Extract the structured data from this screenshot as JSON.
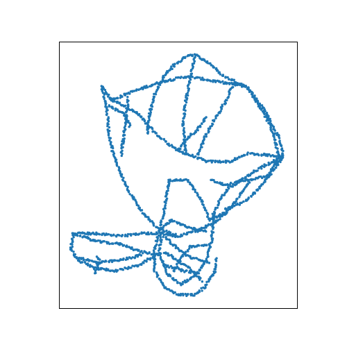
{
  "chart_data": {
    "type": "scatter",
    "title": "",
    "xlabel": "",
    "ylabel": "",
    "xlim": [
      0,
      1
    ],
    "ylim": [
      0,
      1
    ],
    "grid": false,
    "legend": "none",
    "color": "#1f77b4",
    "axes_ticks": "hidden",
    "outline_paths": [
      [
        [
          0.18,
          0.83
        ],
        [
          0.22,
          0.78
        ],
        [
          0.25,
          0.77
        ],
        [
          0.33,
          0.73
        ],
        [
          0.41,
          0.65
        ],
        [
          0.5,
          0.59
        ],
        [
          0.62,
          0.55
        ],
        [
          0.72,
          0.55
        ],
        [
          0.79,
          0.58
        ],
        [
          0.94,
          0.57
        ]
      ],
      [
        [
          0.22,
          0.78
        ],
        [
          0.3,
          0.81
        ],
        [
          0.43,
          0.85
        ],
        [
          0.54,
          0.87
        ],
        [
          0.66,
          0.85
        ],
        [
          0.73,
          0.84
        ],
        [
          0.79,
          0.83
        ]
      ],
      [
        [
          0.48,
          0.91
        ],
        [
          0.54,
          0.95
        ],
        [
          0.57,
          0.95
        ],
        [
          0.63,
          0.92
        ],
        [
          0.69,
          0.87
        ],
        [
          0.79,
          0.83
        ],
        [
          0.87,
          0.73
        ],
        [
          0.92,
          0.64
        ],
        [
          0.94,
          0.57
        ]
      ],
      [
        [
          0.48,
          0.91
        ],
        [
          0.44,
          0.87
        ],
        [
          0.4,
          0.8
        ],
        [
          0.38,
          0.73
        ],
        [
          0.37,
          0.65
        ]
      ],
      [
        [
          0.57,
          0.95
        ],
        [
          0.55,
          0.87
        ],
        [
          0.53,
          0.77
        ],
        [
          0.52,
          0.69
        ],
        [
          0.53,
          0.58
        ]
      ],
      [
        [
          0.79,
          0.83
        ],
        [
          0.86,
          0.73
        ],
        [
          0.9,
          0.65
        ],
        [
          0.92,
          0.57
        ],
        [
          0.88,
          0.5
        ],
        [
          0.8,
          0.48
        ],
        [
          0.74,
          0.4
        ],
        [
          0.7,
          0.36
        ],
        [
          0.63,
          0.33
        ]
      ],
      [
        [
          0.94,
          0.57
        ],
        [
          0.85,
          0.53
        ],
        [
          0.78,
          0.49
        ],
        [
          0.71,
          0.45
        ],
        [
          0.67,
          0.4
        ],
        [
          0.64,
          0.34
        ]
      ],
      [
        [
          0.94,
          0.57
        ],
        [
          0.9,
          0.52
        ],
        [
          0.84,
          0.45
        ],
        [
          0.78,
          0.4
        ],
        [
          0.69,
          0.37
        ]
      ],
      [
        [
          0.18,
          0.83
        ],
        [
          0.2,
          0.75
        ],
        [
          0.21,
          0.65
        ],
        [
          0.23,
          0.57
        ],
        [
          0.29,
          0.44
        ],
        [
          0.35,
          0.36
        ],
        [
          0.41,
          0.3
        ],
        [
          0.5,
          0.27
        ],
        [
          0.58,
          0.29
        ],
        [
          0.65,
          0.32
        ],
        [
          0.7,
          0.36
        ]
      ],
      [
        [
          0.29,
          0.79
        ],
        [
          0.28,
          0.7
        ],
        [
          0.27,
          0.64
        ],
        [
          0.26,
          0.57
        ]
      ],
      [
        [
          0.63,
          0.33
        ],
        [
          0.6,
          0.4
        ],
        [
          0.54,
          0.48
        ],
        [
          0.46,
          0.48
        ],
        [
          0.44,
          0.36
        ],
        [
          0.4,
          0.22
        ],
        [
          0.4,
          0.14
        ],
        [
          0.44,
          0.08
        ],
        [
          0.5,
          0.05
        ],
        [
          0.57,
          0.05
        ],
        [
          0.61,
          0.08
        ],
        [
          0.65,
          0.13
        ],
        [
          0.66,
          0.19
        ]
      ],
      [
        [
          0.65,
          0.35
        ],
        [
          0.64,
          0.26
        ],
        [
          0.62,
          0.18
        ],
        [
          0.57,
          0.12
        ],
        [
          0.51,
          0.09
        ],
        [
          0.45,
          0.13
        ],
        [
          0.42,
          0.21
        ],
        [
          0.43,
          0.28
        ],
        [
          0.5,
          0.27
        ]
      ],
      [
        [
          0.41,
          0.28
        ],
        [
          0.34,
          0.28
        ],
        [
          0.26,
          0.27
        ],
        [
          0.16,
          0.28
        ],
        [
          0.06,
          0.28
        ],
        [
          0.05,
          0.22
        ],
        [
          0.08,
          0.18
        ],
        [
          0.15,
          0.15
        ],
        [
          0.24,
          0.14
        ],
        [
          0.33,
          0.16
        ],
        [
          0.41,
          0.2
        ]
      ],
      [
        [
          0.06,
          0.28
        ],
        [
          0.16,
          0.25
        ],
        [
          0.26,
          0.24
        ],
        [
          0.35,
          0.21
        ],
        [
          0.42,
          0.2
        ]
      ],
      [
        [
          0.08,
          0.19
        ],
        [
          0.16,
          0.17
        ],
        [
          0.26,
          0.18
        ],
        [
          0.35,
          0.2
        ]
      ],
      [
        [
          0.15,
          0.13
        ],
        [
          0.17,
          0.17
        ],
        [
          0.16,
          0.2
        ]
      ],
      [
        [
          0.43,
          0.3
        ],
        [
          0.47,
          0.33
        ],
        [
          0.55,
          0.3
        ],
        [
          0.62,
          0.29
        ]
      ],
      [
        [
          0.44,
          0.21
        ],
        [
          0.48,
          0.19
        ],
        [
          0.53,
          0.16
        ],
        [
          0.57,
          0.13
        ],
        [
          0.6,
          0.1
        ]
      ],
      [
        [
          0.44,
          0.27
        ],
        [
          0.5,
          0.22
        ],
        [
          0.55,
          0.19
        ],
        [
          0.63,
          0.17
        ]
      ],
      [
        [
          0.45,
          0.16
        ],
        [
          0.52,
          0.14
        ],
        [
          0.59,
          0.13
        ]
      ],
      [
        [
          0.48,
          0.14
        ],
        [
          0.52,
          0.2
        ],
        [
          0.55,
          0.23
        ],
        [
          0.63,
          0.24
        ]
      ],
      [
        [
          0.73,
          0.84
        ],
        [
          0.7,
          0.78
        ],
        [
          0.66,
          0.72
        ],
        [
          0.61,
          0.64
        ],
        [
          0.58,
          0.57
        ]
      ],
      [
        [
          0.5,
          0.59
        ],
        [
          0.54,
          0.64
        ],
        [
          0.58,
          0.67
        ],
        [
          0.62,
          0.72
        ]
      ],
      [
        [
          0.64,
          0.48
        ],
        [
          0.7,
          0.46
        ],
        [
          0.77,
          0.48
        ],
        [
          0.8,
          0.48
        ]
      ],
      [
        [
          0.21,
          0.76
        ],
        [
          0.27,
          0.73
        ],
        [
          0.3,
          0.68
        ]
      ]
    ]
  }
}
